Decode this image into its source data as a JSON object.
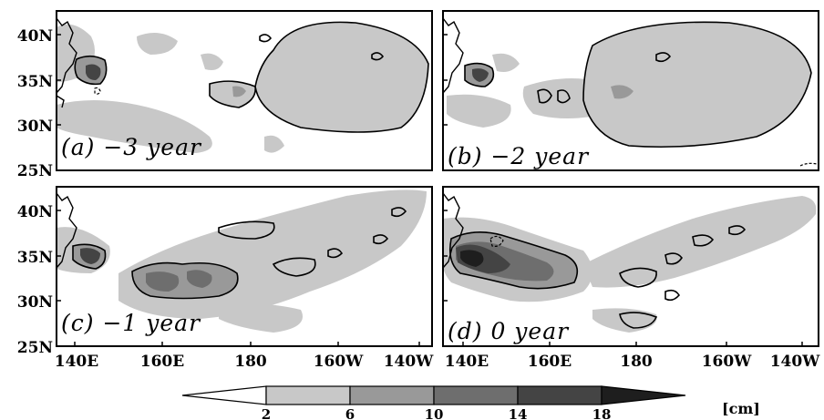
{
  "panels": [
    {
      "id": "a",
      "label": "(a) −3 year"
    },
    {
      "id": "b",
      "label": "(b) −2 year"
    },
    {
      "id": "c",
      "label": "(c) −1 year"
    },
    {
      "id": "d",
      "label": "(d) 0 year"
    }
  ],
  "lat_labels": [
    "40N",
    "35N",
    "30N",
    "25N"
  ],
  "lon_labels": [
    "140E",
    "160E",
    "180",
    "160W",
    "140W"
  ],
  "colorbar": {
    "levels": [
      "2",
      "6",
      "10",
      "14",
      "18"
    ],
    "units": "[cm]",
    "colors": [
      "#ffffff",
      "#c8c8c8",
      "#999999",
      "#6e6e6e",
      "#444444",
      "#1e1e1e"
    ]
  }
}
